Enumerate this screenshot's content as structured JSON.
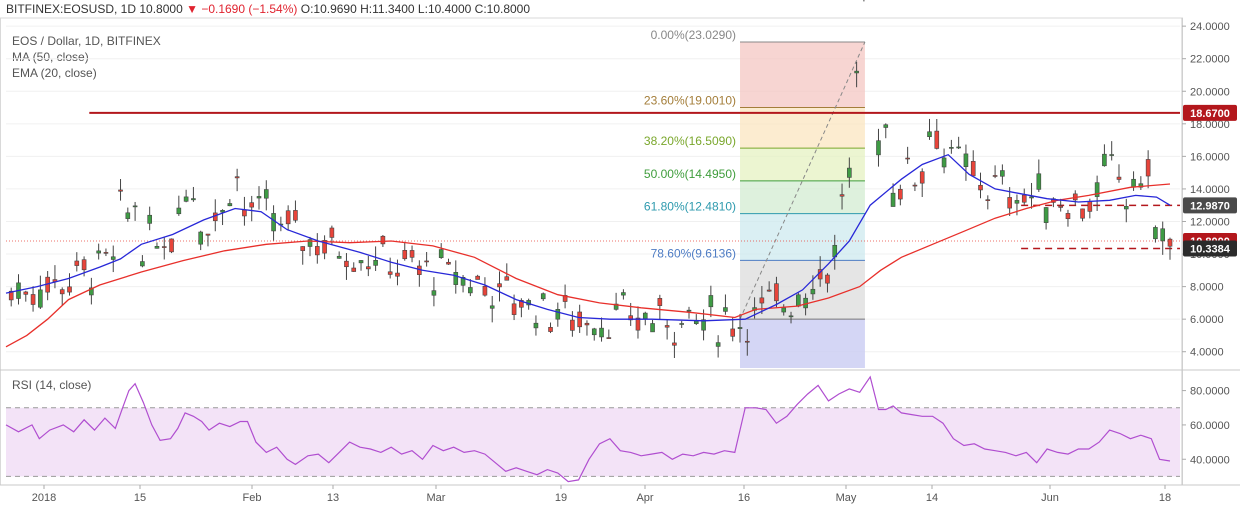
{
  "header": {
    "symbol": "BITFINEX:EOSUSD, 1D",
    "last": "10.8000",
    "change": "▼ −0.1690 (−1.54%)",
    "ohlc": "O:10.9690  H:11.3400  L:10.4000  C:10.8000"
  },
  "legend": {
    "title": "EOS / Dollar, 1D, BITFINEX",
    "ma": "MA (50, close)",
    "ema": "EMA (20, close)",
    "rsi": "RSI (14, close)"
  },
  "colors": {
    "bull": "#3e9b44",
    "bear": "#e8443a",
    "ma": "#e8302b",
    "ema": "#2828d8",
    "level": "#b3171c",
    "rsi": "#b04ed0",
    "rsi_band": "#f3e3f7"
  },
  "chart_data": [
    {
      "type": "candlestick",
      "title": "EOS / Dollar, 1D, BITFINEX",
      "ylim": [
        3.0,
        24.5
      ],
      "y_ticks": [
        "24.0000",
        "22.0000",
        "20.0000",
        "18.0000",
        "16.0000",
        "14.0000",
        "12.0000",
        "10.0000",
        "8.0000",
        "6.0000",
        "4.0000"
      ],
      "x_ticks": [
        "2018",
        "15",
        "Feb",
        "13",
        "Mar",
        "19",
        "Apr",
        "16",
        "May",
        "14",
        "Jun",
        "18"
      ],
      "series": [
        {
          "name": "MA (50, close)",
          "values": [
            [
              0,
              4.3
            ],
            [
              20,
              5.0
            ],
            [
              40,
              6.0
            ],
            [
              60,
              7.2
            ],
            [
              90,
              8.1
            ],
            [
              130,
              8.9
            ],
            [
              170,
              9.6
            ],
            [
              210,
              10.2
            ],
            [
              250,
              10.6
            ],
            [
              290,
              10.8
            ],
            [
              330,
              10.7
            ],
            [
              370,
              10.8
            ],
            [
              410,
              10.5
            ],
            [
              450,
              9.8
            ],
            [
              490,
              8.5
            ],
            [
              530,
              7.5
            ],
            [
              570,
              7.0
            ],
            [
              610,
              6.7
            ],
            [
              660,
              6.4
            ],
            [
              700,
              6.1
            ],
            [
              720,
              6.6
            ],
            [
              760,
              6.8
            ],
            [
              790,
              7.3
            ],
            [
              820,
              8.0
            ],
            [
              840,
              9.0
            ],
            [
              860,
              9.8
            ],
            [
              890,
              10.6
            ],
            [
              920,
              11.4
            ],
            [
              950,
              12.2
            ],
            [
              980,
              12.8
            ],
            [
              1010,
              13.3
            ],
            [
              1040,
              13.6
            ],
            [
              1080,
              14.1
            ],
            [
              1118,
              14.3
            ]
          ]
        },
        {
          "name": "EMA (20, close)",
          "values": [
            [
              0,
              7.6
            ],
            [
              30,
              8.0
            ],
            [
              60,
              8.5
            ],
            [
              90,
              9.2
            ],
            [
              110,
              9.7
            ],
            [
              130,
              10.6
            ],
            [
              160,
              11.2
            ],
            [
              190,
              12.1
            ],
            [
              220,
              12.8
            ],
            [
              245,
              12.6
            ],
            [
              270,
              11.5
            ],
            [
              300,
              10.8
            ],
            [
              340,
              10.1
            ],
            [
              370,
              9.5
            ],
            [
              400,
              9.0
            ],
            [
              430,
              8.7
            ],
            [
              460,
              8.1
            ],
            [
              490,
              7.2
            ],
            [
              520,
              6.6
            ],
            [
              550,
              6.1
            ],
            [
              580,
              6.0
            ],
            [
              620,
              6.0
            ],
            [
              670,
              5.9
            ],
            [
              710,
              6.0
            ],
            [
              740,
              6.9
            ],
            [
              765,
              7.8
            ],
            [
              790,
              9.4
            ],
            [
              810,
              10.8
            ],
            [
              830,
              13.0
            ],
            [
              860,
              14.6
            ],
            [
              880,
              15.5
            ],
            [
              905,
              16.1
            ],
            [
              925,
              14.9
            ],
            [
              950,
              14.0
            ],
            [
              975,
              13.7
            ],
            [
              1000,
              13.4
            ],
            [
              1030,
              13.2
            ],
            [
              1060,
              13.3
            ],
            [
              1085,
              13.6
            ],
            [
              1105,
              13.5
            ],
            [
              1118,
              13.0
            ]
          ]
        }
      ],
      "fibonacci": [
        {
          "label": "0.00%(23.0290)",
          "value": 23.029
        },
        {
          "label": "23.60%(19.0010)",
          "value": 19.001
        },
        {
          "label": "38.20%(16.5090)",
          "value": 16.509
        },
        {
          "label": "50.00%(14.4950)",
          "value": 14.495
        },
        {
          "label": "61.80%(12.4810)",
          "value": 12.481
        },
        {
          "label": "78.60%(9.6136)",
          "value": 9.6136
        },
        {
          "label": "",
          "value": 6.0
        }
      ],
      "annotations": [
        {
          "label": "18.6700",
          "value": 18.67,
          "style": "solid"
        },
        {
          "label": "12.9870",
          "value": 12.987,
          "style": "dashed"
        },
        {
          "label": "10.3384",
          "value": 10.3384,
          "style": "dashed"
        },
        {
          "label": "10.8000",
          "value": 10.8,
          "style": "last-price"
        }
      ]
    },
    {
      "type": "line",
      "title": "RSI (14, close)",
      "ylim": [
        25,
        92
      ],
      "y_ticks": [
        "80.0000",
        "60.0000",
        "40.0000"
      ],
      "bands": [
        70,
        30
      ],
      "series": [
        {
          "name": "RSI (14, close)",
          "values": [
            [
              0,
              60
            ],
            [
              12,
              56
            ],
            [
              25,
              60
            ],
            [
              32,
              52
            ],
            [
              42,
              57
            ],
            [
              55,
              60
            ],
            [
              65,
              56
            ],
            [
              75,
              63
            ],
            [
              85,
              57
            ],
            [
              95,
              64
            ],
            [
              105,
              58
            ],
            [
              112,
              70
            ],
            [
              118,
              80
            ],
            [
              124,
              84
            ],
            [
              132,
              73
            ],
            [
              140,
              60
            ],
            [
              148,
              51
            ],
            [
              158,
              52
            ],
            [
              165,
              58
            ],
            [
              172,
              67
            ],
            [
              180,
              65
            ],
            [
              188,
              62
            ],
            [
              195,
              57
            ],
            [
              205,
              61
            ],
            [
              215,
              59
            ],
            [
              225,
              62
            ],
            [
              232,
              62
            ],
            [
              240,
              50
            ],
            [
              250,
              44
            ],
            [
              260,
              47
            ],
            [
              270,
              40
            ],
            [
              278,
              37
            ],
            [
              290,
              42
            ],
            [
              300,
              43
            ],
            [
              310,
              38
            ],
            [
              320,
              44
            ],
            [
              330,
              50
            ],
            [
              340,
              47
            ],
            [
              350,
              46
            ],
            [
              360,
              44
            ],
            [
              370,
              47
            ],
            [
              380,
              43
            ],
            [
              390,
              45
            ],
            [
              400,
              40
            ],
            [
              410,
              48
            ],
            [
              420,
              45
            ],
            [
              430,
              47
            ],
            [
              440,
              44
            ],
            [
              450,
              45
            ],
            [
              460,
              43
            ],
            [
              470,
              38
            ],
            [
              480,
              33
            ],
            [
              490,
              35
            ],
            [
              500,
              33
            ],
            [
              510,
              31
            ],
            [
              520,
              34
            ],
            [
              530,
              32
            ],
            [
              540,
              27
            ],
            [
              550,
              28
            ],
            [
              560,
              40
            ],
            [
              570,
              49
            ],
            [
              580,
              52
            ],
            [
              590,
              45
            ],
            [
              600,
              44
            ],
            [
              610,
              42
            ],
            [
              620,
              43
            ],
            [
              630,
              44
            ],
            [
              640,
              40
            ],
            [
              650,
              43
            ],
            [
              660,
              42
            ],
            [
              670,
              44
            ],
            [
              680,
              43
            ],
            [
              690,
              45
            ],
            [
              700,
              44
            ],
            [
              710,
              70
            ],
            [
              720,
              70
            ],
            [
              730,
              69
            ],
            [
              740,
              61
            ],
            [
              750,
              65
            ],
            [
              760,
              72
            ],
            [
              770,
              78
            ],
            [
              780,
              83
            ],
            [
              790,
              74
            ],
            [
              800,
              78
            ],
            [
              810,
              81
            ],
            [
              820,
              79
            ],
            [
              830,
              88
            ],
            [
              838,
              69
            ],
            [
              845,
              69
            ],
            [
              852,
              71
            ],
            [
              860,
              67
            ],
            [
              870,
              66
            ],
            [
              880,
              65
            ],
            [
              890,
              65
            ],
            [
              900,
              61
            ],
            [
              910,
              52
            ],
            [
              920,
              48
            ],
            [
              930,
              49
            ],
            [
              940,
              46
            ],
            [
              950,
              45
            ],
            [
              960,
              44
            ],
            [
              970,
              42
            ],
            [
              980,
              44
            ],
            [
              990,
              38
            ],
            [
              1000,
              46
            ],
            [
              1010,
              44
            ],
            [
              1020,
              43
            ],
            [
              1030,
              46
            ],
            [
              1040,
              46
            ],
            [
              1050,
              50
            ],
            [
              1060,
              57
            ],
            [
              1070,
              55
            ],
            [
              1080,
              52
            ],
            [
              1090,
              54
            ],
            [
              1100,
              52
            ],
            [
              1108,
              40
            ],
            [
              1118,
              39
            ]
          ]
        }
      ]
    }
  ]
}
